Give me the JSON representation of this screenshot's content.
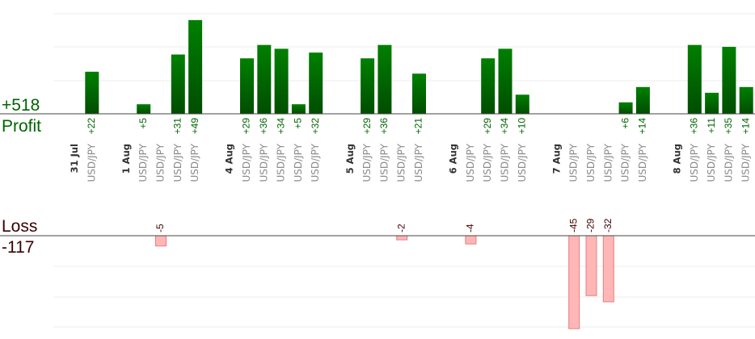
{
  "summary": {
    "profit_total": "+518",
    "profit_label": "Profit",
    "loss_label": "Loss",
    "loss_total": "-117"
  },
  "colors": {
    "profit_bar_top": "#008000",
    "profit_bar_bottom": "#004d00",
    "profit_text": "#006400",
    "loss_bar": "#ffb6b6",
    "loss_bar_stroke": "#e08080",
    "loss_text": "#3a0000"
  },
  "chart_data": {
    "type": "bar",
    "title": "",
    "grid": true,
    "columns": [
      {
        "kind": "date",
        "label": "31 Jul"
      },
      {
        "kind": "trade",
        "label": "USD/JPY",
        "value": 22,
        "value_label": "+22"
      },
      {
        "kind": "gap"
      },
      {
        "kind": "date",
        "label": "1 Aug"
      },
      {
        "kind": "trade",
        "label": "USD/JPY",
        "value": 5,
        "value_label": "+5"
      },
      {
        "kind": "trade",
        "label": "USD/JPY",
        "value": -5,
        "value_label": "-5"
      },
      {
        "kind": "trade",
        "label": "USD/JPY",
        "value": 31,
        "value_label": "+31"
      },
      {
        "kind": "trade",
        "label": "USD/JPY",
        "value": 49,
        "value_label": "+49"
      },
      {
        "kind": "gap"
      },
      {
        "kind": "date",
        "label": "4 Aug"
      },
      {
        "kind": "trade",
        "label": "USD/JPY",
        "value": 29,
        "value_label": "+29"
      },
      {
        "kind": "trade",
        "label": "USD/JPY",
        "value": 36,
        "value_label": "+36"
      },
      {
        "kind": "trade",
        "label": "USD/JPY",
        "value": 34,
        "value_label": "+34"
      },
      {
        "kind": "trade",
        "label": "USD/JPY",
        "value": 5,
        "value_label": "+5"
      },
      {
        "kind": "trade",
        "label": "USD/JPY",
        "value": 32,
        "value_label": "+32"
      },
      {
        "kind": "gap"
      },
      {
        "kind": "date",
        "label": "5 Aug"
      },
      {
        "kind": "trade",
        "label": "USD/JPY",
        "value": 29,
        "value_label": "+29"
      },
      {
        "kind": "trade",
        "label": "USD/JPY",
        "value": 36,
        "value_label": "+36"
      },
      {
        "kind": "trade",
        "label": "USD/JPY",
        "value": -2,
        "value_label": "-2"
      },
      {
        "kind": "trade",
        "label": "USD/JPY",
        "value": 21,
        "value_label": "+21"
      },
      {
        "kind": "gap"
      },
      {
        "kind": "date",
        "label": "6 Aug"
      },
      {
        "kind": "trade",
        "label": "USD/JPY",
        "value": -4,
        "value_label": "-4"
      },
      {
        "kind": "trade",
        "label": "USD/JPY",
        "value": 29,
        "value_label": "+29"
      },
      {
        "kind": "trade",
        "label": "USD/JPY",
        "value": 34,
        "value_label": "+34"
      },
      {
        "kind": "trade",
        "label": "USD/JPY",
        "value": 10,
        "value_label": "+10"
      },
      {
        "kind": "gap"
      },
      {
        "kind": "date",
        "label": "7 Aug"
      },
      {
        "kind": "trade",
        "label": "USD/JPY",
        "value": -45,
        "value_label": "-45"
      },
      {
        "kind": "trade",
        "label": "USD/JPY",
        "value": -29,
        "value_label": "-29"
      },
      {
        "kind": "trade",
        "label": "USD/JPY",
        "value": -32,
        "value_label": "-32"
      },
      {
        "kind": "trade",
        "label": "USD/JPY",
        "value": 6,
        "value_label": "+6"
      },
      {
        "kind": "trade",
        "label": "USD/JPY",
        "value": 14,
        "value_label": "+14"
      },
      {
        "kind": "gap"
      },
      {
        "kind": "date",
        "label": "8 Aug"
      },
      {
        "kind": "trade",
        "label": "USD/JPY",
        "value": 36,
        "value_label": "+36"
      },
      {
        "kind": "trade",
        "label": "USD/JPY",
        "value": 11,
        "value_label": "+11"
      },
      {
        "kind": "trade",
        "label": "USD/JPY",
        "value": 35,
        "value_label": "+35"
      },
      {
        "kind": "trade",
        "label": "USD/JPY",
        "value": 14,
        "value_label": "+14"
      }
    ]
  }
}
